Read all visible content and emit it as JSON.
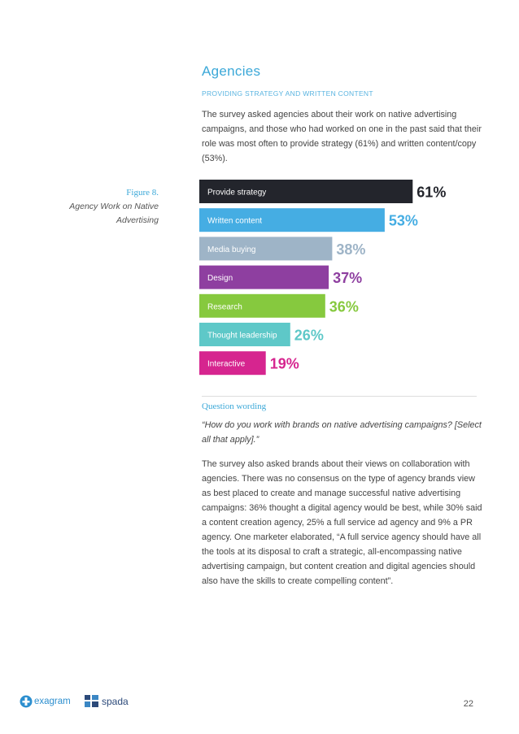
{
  "section": {
    "title": "Agencies",
    "subtitle": "PROVIDING STRATEGY AND WRITTEN CONTENT",
    "intro": "The survey asked agencies about their work on native advertising campaigns, and those who had worked on one in the past said that their role was most often to provide strategy (61%) and written content/copy (53%)."
  },
  "figure": {
    "number": "Figure 8.",
    "title_line1": "Agency Work on Native",
    "title_line2": "Advertising"
  },
  "chart_data": {
    "type": "bar",
    "orientation": "horizontal",
    "categories": [
      "Provide strategy",
      "Written content",
      "Media buying",
      "Design",
      "Research",
      "Thought leadership",
      "Interactive"
    ],
    "values": [
      61,
      53,
      38,
      37,
      36,
      26,
      19
    ],
    "value_labels": [
      "61%",
      "53%",
      "38%",
      "37%",
      "36%",
      "26%",
      "19%"
    ],
    "colors": [
      "#23252c",
      "#45ade3",
      "#9eb4c7",
      "#8e3fa0",
      "#86c93e",
      "#5ec8c8",
      "#d6258f"
    ],
    "xlim": [
      0,
      100
    ],
    "title": "",
    "xlabel": "",
    "ylabel": ""
  },
  "question": {
    "heading": "Question wording",
    "quote": "“How do you work with brands on native advertising campaigns? [Select all that apply].”"
  },
  "body": {
    "text": "The survey also asked brands about their views on collaboration with agencies. There was no consensus on the type of agency brands view as best placed to create and manage successful native advertising campaigns: 36% thought a digital agency would be best, while 30% said a content creation agency, 25% a full service ad agency and 9% a PR agency. One marketer elaborated, “A full service agency should have all the tools at its disposal to craft a strategic, all-encompassing native advertising campaign, but content creation and digital agencies should also have the skills to create compelling content”."
  },
  "footer": {
    "logo1": "exagram",
    "logo2": "spada",
    "page_number": "22",
    "logo1_color": "#2d8fcf",
    "logo2_color": "#2c4a7a"
  }
}
